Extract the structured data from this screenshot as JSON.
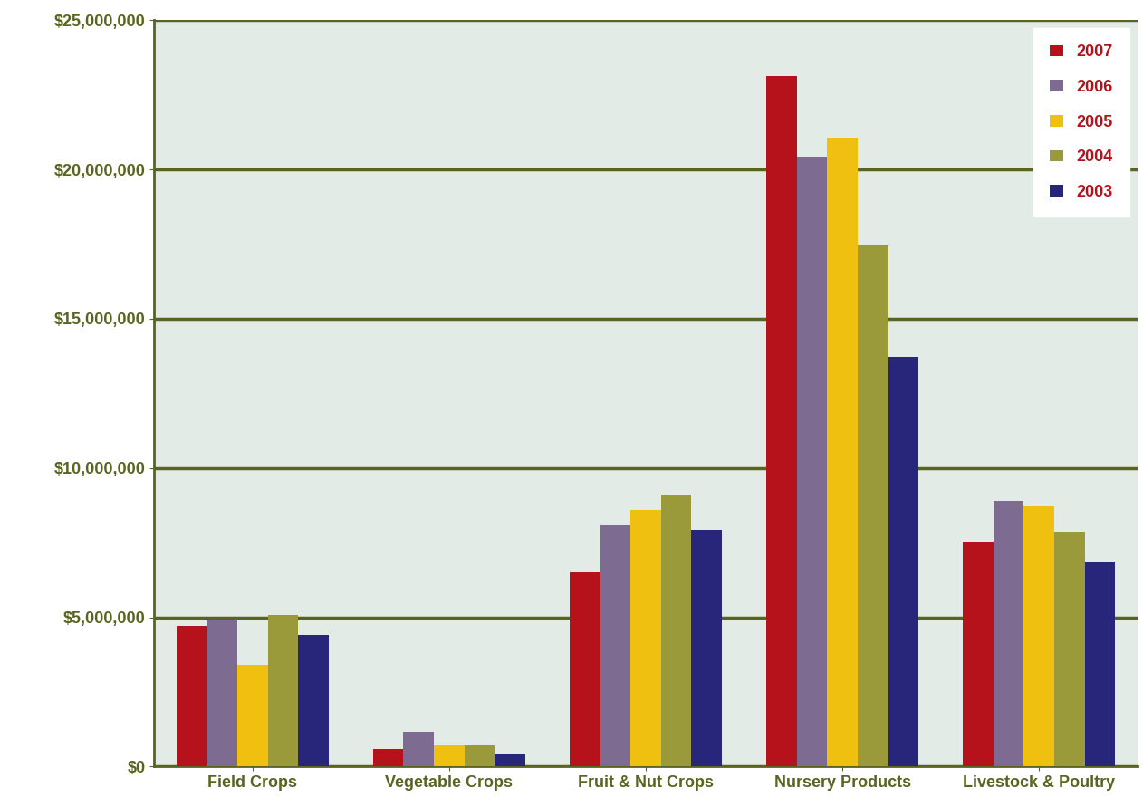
{
  "chart_data": {
    "type": "bar",
    "categories": [
      "Field Crops",
      "Vegetable Crops",
      "Fruit & Nut Crops",
      "Nursery Products",
      "Livestock & Poultry"
    ],
    "series": [
      {
        "name": "2007",
        "color": "#b5121b",
        "values": [
          4720000,
          600000,
          6530000,
          23130000,
          7530000
        ]
      },
      {
        "name": "2006",
        "color": "#7e6b91",
        "values": [
          4900000,
          1180000,
          8070000,
          20440000,
          8890000
        ]
      },
      {
        "name": "2005",
        "color": "#f0c010",
        "values": [
          3400000,
          700000,
          8590000,
          21070000,
          8710000
        ]
      },
      {
        "name": "2004",
        "color": "#9a9a3a",
        "values": [
          5080000,
          700000,
          9100000,
          17470000,
          7860000
        ]
      },
      {
        "name": "2003",
        "color": "#27267a",
        "values": [
          4410000,
          450000,
          7920000,
          13720000,
          6860000
        ]
      }
    ],
    "ylim": [
      0,
      25000000
    ],
    "yticks": [
      {
        "value": 0,
        "label": "$0"
      },
      {
        "value": 5000000,
        "label": "$5,000,000"
      },
      {
        "value": 10000000,
        "label": "$10,000,000"
      },
      {
        "value": 15000000,
        "label": "$15,000,000"
      },
      {
        "value": 20000000,
        "label": "$20,000,000"
      },
      {
        "value": 25000000,
        "label": "$25,000,000"
      }
    ],
    "grid": true,
    "legend": "upper right"
  }
}
